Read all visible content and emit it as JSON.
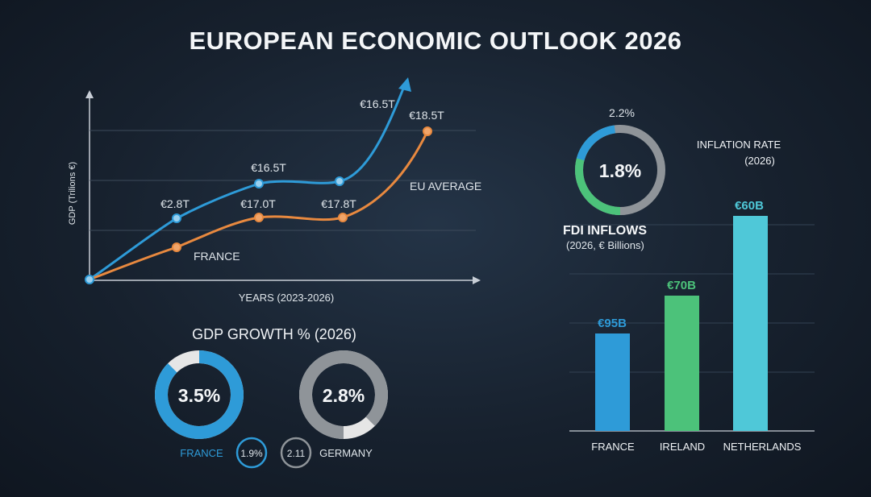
{
  "title": "EUROPEAN ECONOMIC OUTLOOK 2026",
  "colors": {
    "eu": "#2e9bd8",
    "france": "#e8893f",
    "green": "#4cc27a",
    "teal": "#4fc8d8",
    "gray": "#8f9499",
    "light": "#e6e6e6",
    "axis": "#c8ced6"
  },
  "chart_data": [
    {
      "type": "line",
      "ylabel": "GDP (Trilions €)",
      "xlabel": "YEARS (2023-2026)",
      "series": [
        {
          "name": "EU AVERAGE",
          "labels": [
            "€2.8T",
            "€16.5T",
            "€16.5T"
          ]
        },
        {
          "name": "FRANCE",
          "labels": [
            "€17.0T",
            "€17.8T",
            "€18.5T"
          ]
        }
      ]
    },
    {
      "type": "donut",
      "title": "GDP GROWTH % (2026)",
      "items": [
        {
          "label": "FRANCE",
          "value": "3.5%",
          "small": "1.9%"
        },
        {
          "label": "GERMANY",
          "value": "2.8%",
          "small": "2.11"
        }
      ]
    },
    {
      "type": "donut",
      "title": "INFLATION RATE",
      "subtitle": "(2026)",
      "value": "1.8%",
      "top_label": "2.2%"
    },
    {
      "type": "bar",
      "title": "FDI INFLOWS",
      "subtitle": "(2026, € Billions)",
      "categories": [
        "FRANCE",
        "IRELAND",
        "NETHERLANDS"
      ],
      "values": [
        95,
        70,
        60
      ],
      "value_labels": [
        "€95B",
        "€70B",
        "€60B"
      ]
    }
  ]
}
